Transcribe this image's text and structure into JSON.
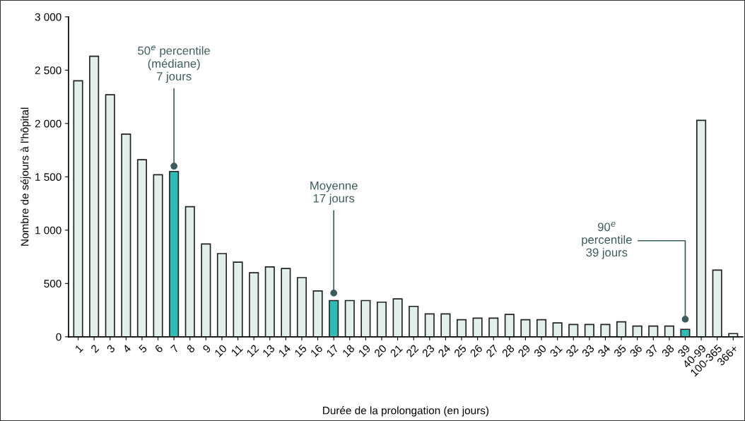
{
  "chart_data": {
    "type": "bar",
    "xlabel": "Durée de la prolongation (en jours)",
    "ylabel": "Nombre de séjours à l'hôpital",
    "categories": [
      "1",
      "2",
      "3",
      "4",
      "5",
      "6",
      "7",
      "8",
      "9",
      "10",
      "11",
      "12",
      "13",
      "14",
      "15",
      "16",
      "17",
      "18",
      "19",
      "20",
      "21",
      "22",
      "23",
      "24",
      "25",
      "26",
      "27",
      "28",
      "29",
      "30",
      "31",
      "32",
      "33",
      "34",
      "35",
      "36",
      "37",
      "38",
      "39",
      "40-99",
      "100-365",
      "366+"
    ],
    "values": [
      2400,
      2630,
      2270,
      1900,
      1660,
      1520,
      1550,
      1220,
      870,
      780,
      700,
      600,
      655,
      640,
      555,
      430,
      340,
      340,
      340,
      325,
      355,
      285,
      215,
      215,
      160,
      175,
      175,
      210,
      160,
      160,
      130,
      115,
      115,
      115,
      140,
      100,
      100,
      100,
      70,
      2030,
      625,
      30
    ],
    "colors": [
      "#e2f0ec",
      "#e2f0ec",
      "#e2f0ec",
      "#e2f0ec",
      "#e2f0ec",
      "#e2f0ec",
      "#2fbcb4",
      "#e2f0ec",
      "#e2f0ec",
      "#e2f0ec",
      "#e2f0ec",
      "#e2f0ec",
      "#e2f0ec",
      "#e2f0ec",
      "#e2f0ec",
      "#e2f0ec",
      "#2fbcb4",
      "#e2f0ec",
      "#e2f0ec",
      "#e2f0ec",
      "#e2f0ec",
      "#e2f0ec",
      "#e2f0ec",
      "#e2f0ec",
      "#e2f0ec",
      "#e2f0ec",
      "#e2f0ec",
      "#e2f0ec",
      "#e2f0ec",
      "#e2f0ec",
      "#e2f0ec",
      "#e2f0ec",
      "#e2f0ec",
      "#e2f0ec",
      "#e2f0ec",
      "#e2f0ec",
      "#e2f0ec",
      "#e2f0ec",
      "#2fbcb4",
      "#e2f0ec",
      "#e2f0ec",
      "#e2f0ec"
    ],
    "ylim": [
      0,
      3000
    ],
    "yticks": [
      0,
      500,
      {
        "value": 1000,
        "label": "1 000"
      },
      {
        "value": 1500,
        "label": "1 500"
      },
      {
        "value": 2000,
        "label": "2 000"
      },
      {
        "value": 2500,
        "label": "2 500"
      },
      {
        "value": 3000,
        "label": "3 000"
      }
    ],
    "grid": false,
    "annotations": [
      {
        "text": "50$^{e}$ percentile\n(médiane)\n7 jours",
        "x": "7",
        "y": 1600
      },
      {
        "text": "Moyenne\n17 jours",
        "x": "17",
        "y": 410
      },
      {
        "text": "90$^{e}$\npercentile\n39 jours",
        "x": "39",
        "y": 165
      }
    ]
  }
}
